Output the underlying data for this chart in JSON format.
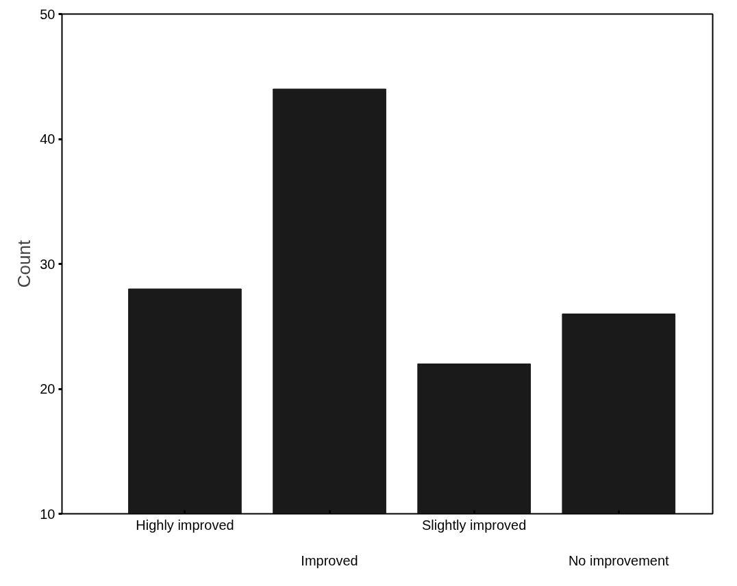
{
  "chart_data": {
    "type": "bar",
    "ylabel": "Count",
    "categories": [
      "Highly improved",
      "Improved",
      "Slightly improved",
      "No improvement"
    ],
    "values": [
      28,
      44,
      22,
      26
    ],
    "color": "#1a1a1a",
    "ylim": [
      10,
      50
    ],
    "yticks": [
      10,
      20,
      30,
      40,
      50
    ],
    "grid": false
  }
}
